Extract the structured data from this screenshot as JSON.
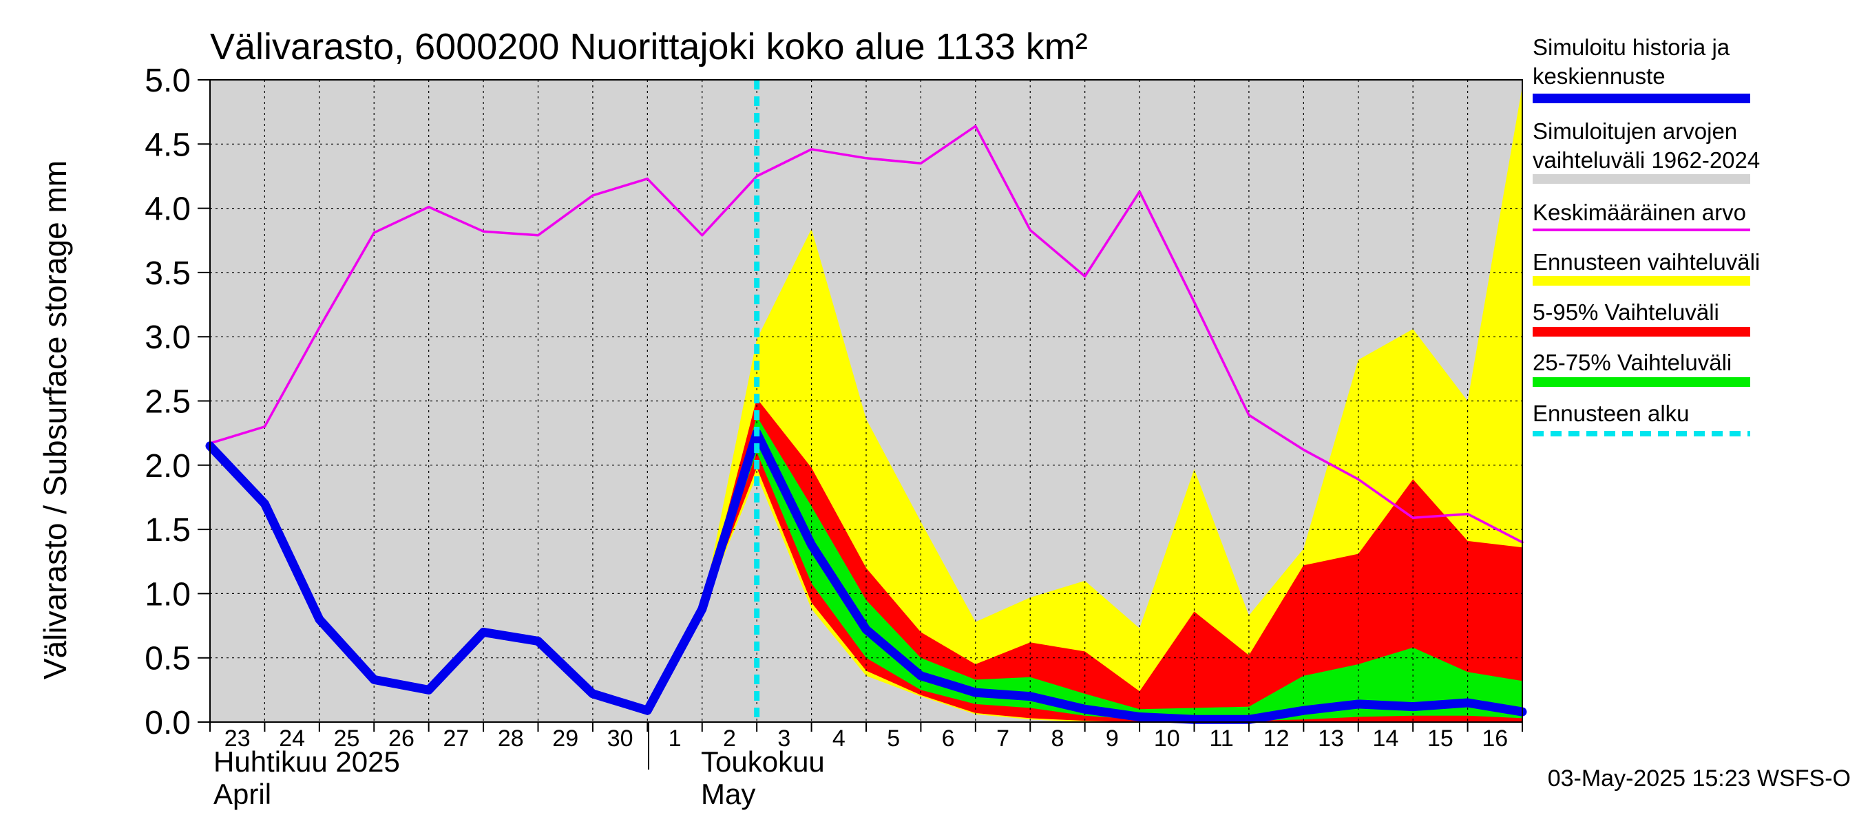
{
  "chart_data": {
    "type": "area",
    "title": "Välivarasto, 6000200 Nuorittajoki koko alue 1133 km²",
    "ylabel": "Välivarasto / Subsurface storage  mm",
    "ylim": [
      0,
      5
    ],
    "yticks": [
      "0.0",
      "0.5",
      "1.0",
      "1.5",
      "2.0",
      "2.5",
      "3.0",
      "3.5",
      "4.0",
      "4.5",
      "5.0"
    ],
    "grid": true,
    "legend_placement": "right",
    "x_tick_labels": [
      "23",
      "24",
      "25",
      "26",
      "27",
      "28",
      "29",
      "30",
      "1",
      "2",
      "3",
      "4",
      "5",
      "6",
      "7",
      "8",
      "9",
      "10",
      "11",
      "12",
      "13",
      "14",
      "15",
      "16"
    ],
    "month_labels": [
      {
        "fi": "Huhtikuu  2025",
        "en": "April"
      },
      {
        "fi": "Toukokuu",
        "en": "May"
      }
    ],
    "dates": [
      "2025-04-23",
      "2025-04-24",
      "2025-04-25",
      "2025-04-26",
      "2025-04-27",
      "2025-04-28",
      "2025-04-29",
      "2025-04-30",
      "2025-05-01",
      "2025-05-02",
      "2025-05-03",
      "2025-05-04",
      "2025-05-05",
      "2025-05-06",
      "2025-05-07",
      "2025-05-08",
      "2025-05-09",
      "2025-05-10",
      "2025-05-11",
      "2025-05-12",
      "2025-05-13",
      "2025-05-14",
      "2025-05-15",
      "2025-05-16",
      "2025-05-17"
    ],
    "forecast_start": "2025-05-03",
    "series": [
      {
        "name": "Simuloitu historia ja keskiennuste",
        "color": "#0000ee",
        "values": [
          2.15,
          1.7,
          0.8,
          0.33,
          0.25,
          0.7,
          0.63,
          0.22,
          0.09,
          0.88,
          2.25,
          1.38,
          0.72,
          0.36,
          0.23,
          0.2,
          0.1,
          0.04,
          0.02,
          0.02,
          0.09,
          0.14,
          0.12,
          0.15,
          0.08
        ]
      },
      {
        "name": "Keskimääräinen arvo",
        "color": "#ee00ee",
        "values": [
          2.17,
          2.3,
          3.07,
          3.81,
          4.01,
          3.82,
          3.79,
          4.1,
          4.23,
          3.79,
          4.25,
          4.46,
          4.39,
          4.35,
          4.64,
          3.83,
          3.47,
          4.13,
          3.27,
          2.39,
          2.12,
          1.89,
          1.59,
          1.62,
          1.4
        ]
      }
    ],
    "bands": [
      {
        "name": "Simuloitujen arvojen vaihteluväli 1962-2024",
        "color": "#d3d3d3",
        "lower": [
          0.0,
          0.0,
          0.0,
          0.0,
          0.0,
          0.0,
          0.0,
          0.0,
          0.0,
          0.0,
          0.0,
          0.0,
          0.0,
          0.0,
          0.0,
          0.0,
          0.0,
          0.0,
          0.0,
          0.0,
          0.0,
          0.0,
          0.0,
          0.0,
          0.0
        ],
        "upper": [
          5.0,
          5.0,
          5.0,
          5.0,
          5.0,
          5.0,
          5.0,
          5.0,
          5.0,
          5.0,
          5.0,
          5.0,
          5.0,
          5.0,
          5.0,
          5.0,
          5.0,
          5.0,
          5.0,
          5.0,
          5.0,
          5.0,
          5.0,
          5.0,
          5.0
        ]
      },
      {
        "name": "Ennusteen vaihteluväli",
        "color": "#ffff00",
        "start": "2025-05-02",
        "lower": [
          0.88,
          1.92,
          0.88,
          0.36,
          0.2,
          0.06,
          0.02,
          0.0,
          0.0,
          0.0,
          0.0,
          0.0,
          0.0,
          0.0,
          0.0,
          0.0
        ],
        "upper": [
          0.88,
          2.98,
          3.84,
          2.36,
          1.56,
          0.78,
          0.97,
          1.1,
          0.73,
          1.97,
          0.83,
          1.35,
          2.82,
          3.06,
          2.5,
          4.95
        ]
      },
      {
        "name": "5-95% Vaihteluväli",
        "color": "#ff0000",
        "start": "2025-05-02",
        "lower": [
          0.88,
          1.98,
          0.93,
          0.4,
          0.21,
          0.07,
          0.03,
          0.01,
          0.0,
          0.0,
          0.0,
          0.0,
          0.0,
          0.0,
          0.0,
          0.0
        ],
        "upper": [
          0.88,
          2.52,
          1.98,
          1.2,
          0.7,
          0.45,
          0.62,
          0.55,
          0.24,
          0.86,
          0.52,
          1.22,
          1.31,
          1.89,
          1.41,
          1.36
        ]
      },
      {
        "name": "25-75% Vaihteluväli",
        "color": "#00ee00",
        "start": "2025-05-02",
        "lower": [
          0.88,
          2.1,
          1.08,
          0.5,
          0.25,
          0.14,
          0.11,
          0.05,
          0.02,
          0.01,
          0.01,
          0.02,
          0.04,
          0.05,
          0.05,
          0.03
        ],
        "upper": [
          0.88,
          2.38,
          1.68,
          0.95,
          0.5,
          0.33,
          0.35,
          0.22,
          0.1,
          0.11,
          0.12,
          0.36,
          0.45,
          0.58,
          0.39,
          0.32
        ]
      }
    ],
    "legend": [
      {
        "label": "Simuloitu historia ja keskiennuste",
        "color": "#0000ee",
        "style": "line"
      },
      {
        "label": "Simuloitujen arvojen vaihteluväli 1962-2024",
        "color": "#d3d3d3",
        "style": "band"
      },
      {
        "label": "Keskimääräinen arvo",
        "color": "#ee00ee",
        "style": "thin"
      },
      {
        "label": "Ennusteen vaihteluväli",
        "color": "#ffff00",
        "style": "band"
      },
      {
        "label": "5-95% Vaihteluväli",
        "color": "#ff0000",
        "style": "band"
      },
      {
        "label": "25-75% Vaihteluväli",
        "color": "#00ee00",
        "style": "band"
      },
      {
        "label": "Ennusteen alku",
        "color": "#00e5ee",
        "style": "dash"
      }
    ],
    "footer": "03-May-2025 15:23 WSFS-O"
  }
}
